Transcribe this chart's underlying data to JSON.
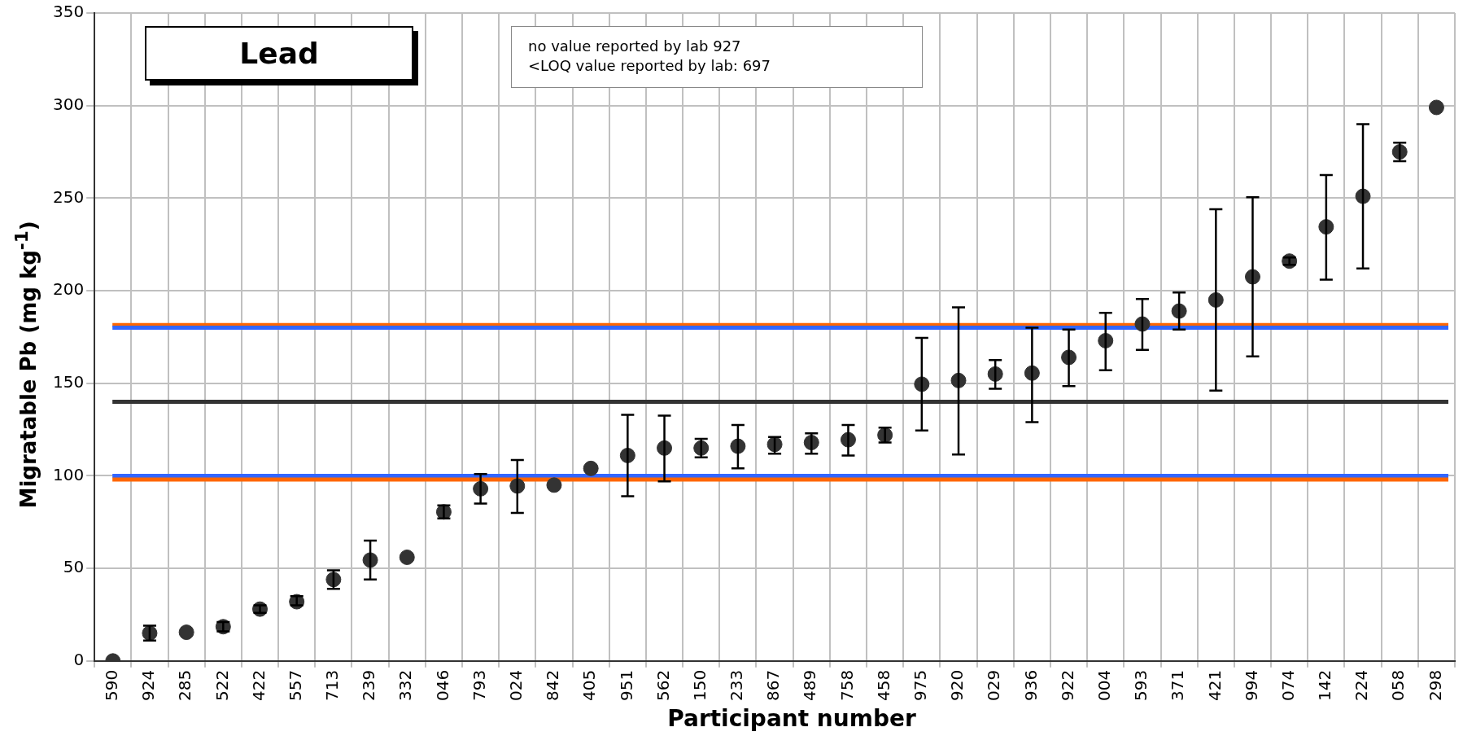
{
  "chart_data": {
    "type": "scatter",
    "title": "Lead",
    "xlabel": "Participant number",
    "ylabel": "Migratable Pb (mg kg$^{-1}$)",
    "annotations": [
      "no value reported by lab 927",
      "<LOQ value reported by lab: 697"
    ],
    "categories": [
      "590",
      "924",
      "285",
      "522",
      "422",
      "557",
      "713",
      "239",
      "332",
      "046",
      "793",
      "024",
      "842",
      "405",
      "951",
      "562",
      "150",
      "233",
      "867",
      "489",
      "758",
      "458",
      "975",
      "920",
      "029",
      "936",
      "922",
      "004",
      "593",
      "371",
      "421",
      "994",
      "074",
      "142",
      "224",
      "058",
      "298"
    ],
    "series": [
      {
        "color": "#333333",
        "values": [
          0,
          15,
          15.5,
          18.5,
          28,
          32,
          44,
          54.5,
          56,
          80.5,
          93,
          94.5,
          95,
          104,
          111,
          115,
          115,
          116,
          117,
          118,
          119.5,
          122,
          149.5,
          151.5,
          155,
          155.5,
          164,
          173,
          182,
          189,
          195,
          207.5,
          216,
          234.5,
          251,
          275,
          299
        ],
        "errors": [
          null,
          [
            11,
            19
          ],
          null,
          [
            16,
            21
          ],
          [
            26,
            30
          ],
          [
            30,
            35
          ],
          [
            39,
            49
          ],
          [
            44,
            65
          ],
          null,
          [
            77,
            84
          ],
          [
            85,
            101
          ],
          [
            80,
            108.5
          ],
          null,
          null,
          [
            89,
            133
          ],
          [
            97,
            132.5
          ],
          [
            110,
            120
          ],
          [
            104,
            127.5
          ],
          [
            112,
            121
          ],
          [
            112,
            123
          ],
          [
            111,
            127.5
          ],
          [
            118,
            126
          ],
          [
            124.5,
            174.5
          ],
          [
            111.5,
            191
          ],
          [
            147,
            162.5
          ],
          [
            129,
            180
          ],
          [
            148.5,
            179
          ],
          [
            157,
            188
          ],
          [
            168,
            195.5
          ],
          [
            179,
            199
          ],
          [
            146,
            244
          ],
          [
            164.5,
            250.5
          ],
          [
            214,
            218
          ],
          [
            206,
            262.5
          ],
          [
            212,
            290
          ],
          [
            270,
            280
          ],
          null
        ]
      }
    ],
    "ylim": [
      0,
      350
    ],
    "yticks": [
      0,
      50,
      100,
      150,
      200,
      250,
      300,
      350
    ],
    "grid": true,
    "legend": false,
    "marker": "circle",
    "ref_lines": [
      {
        "axis": "y",
        "value": 181.5,
        "color": "#ff6600"
      },
      {
        "axis": "y",
        "value": 180,
        "color": "#3366ff"
      },
      {
        "axis": "y",
        "value": 140,
        "color": "#333333"
      },
      {
        "axis": "y",
        "value": 100,
        "color": "#3366ff"
      },
      {
        "axis": "y",
        "value": 98,
        "color": "#ff6600"
      }
    ]
  }
}
